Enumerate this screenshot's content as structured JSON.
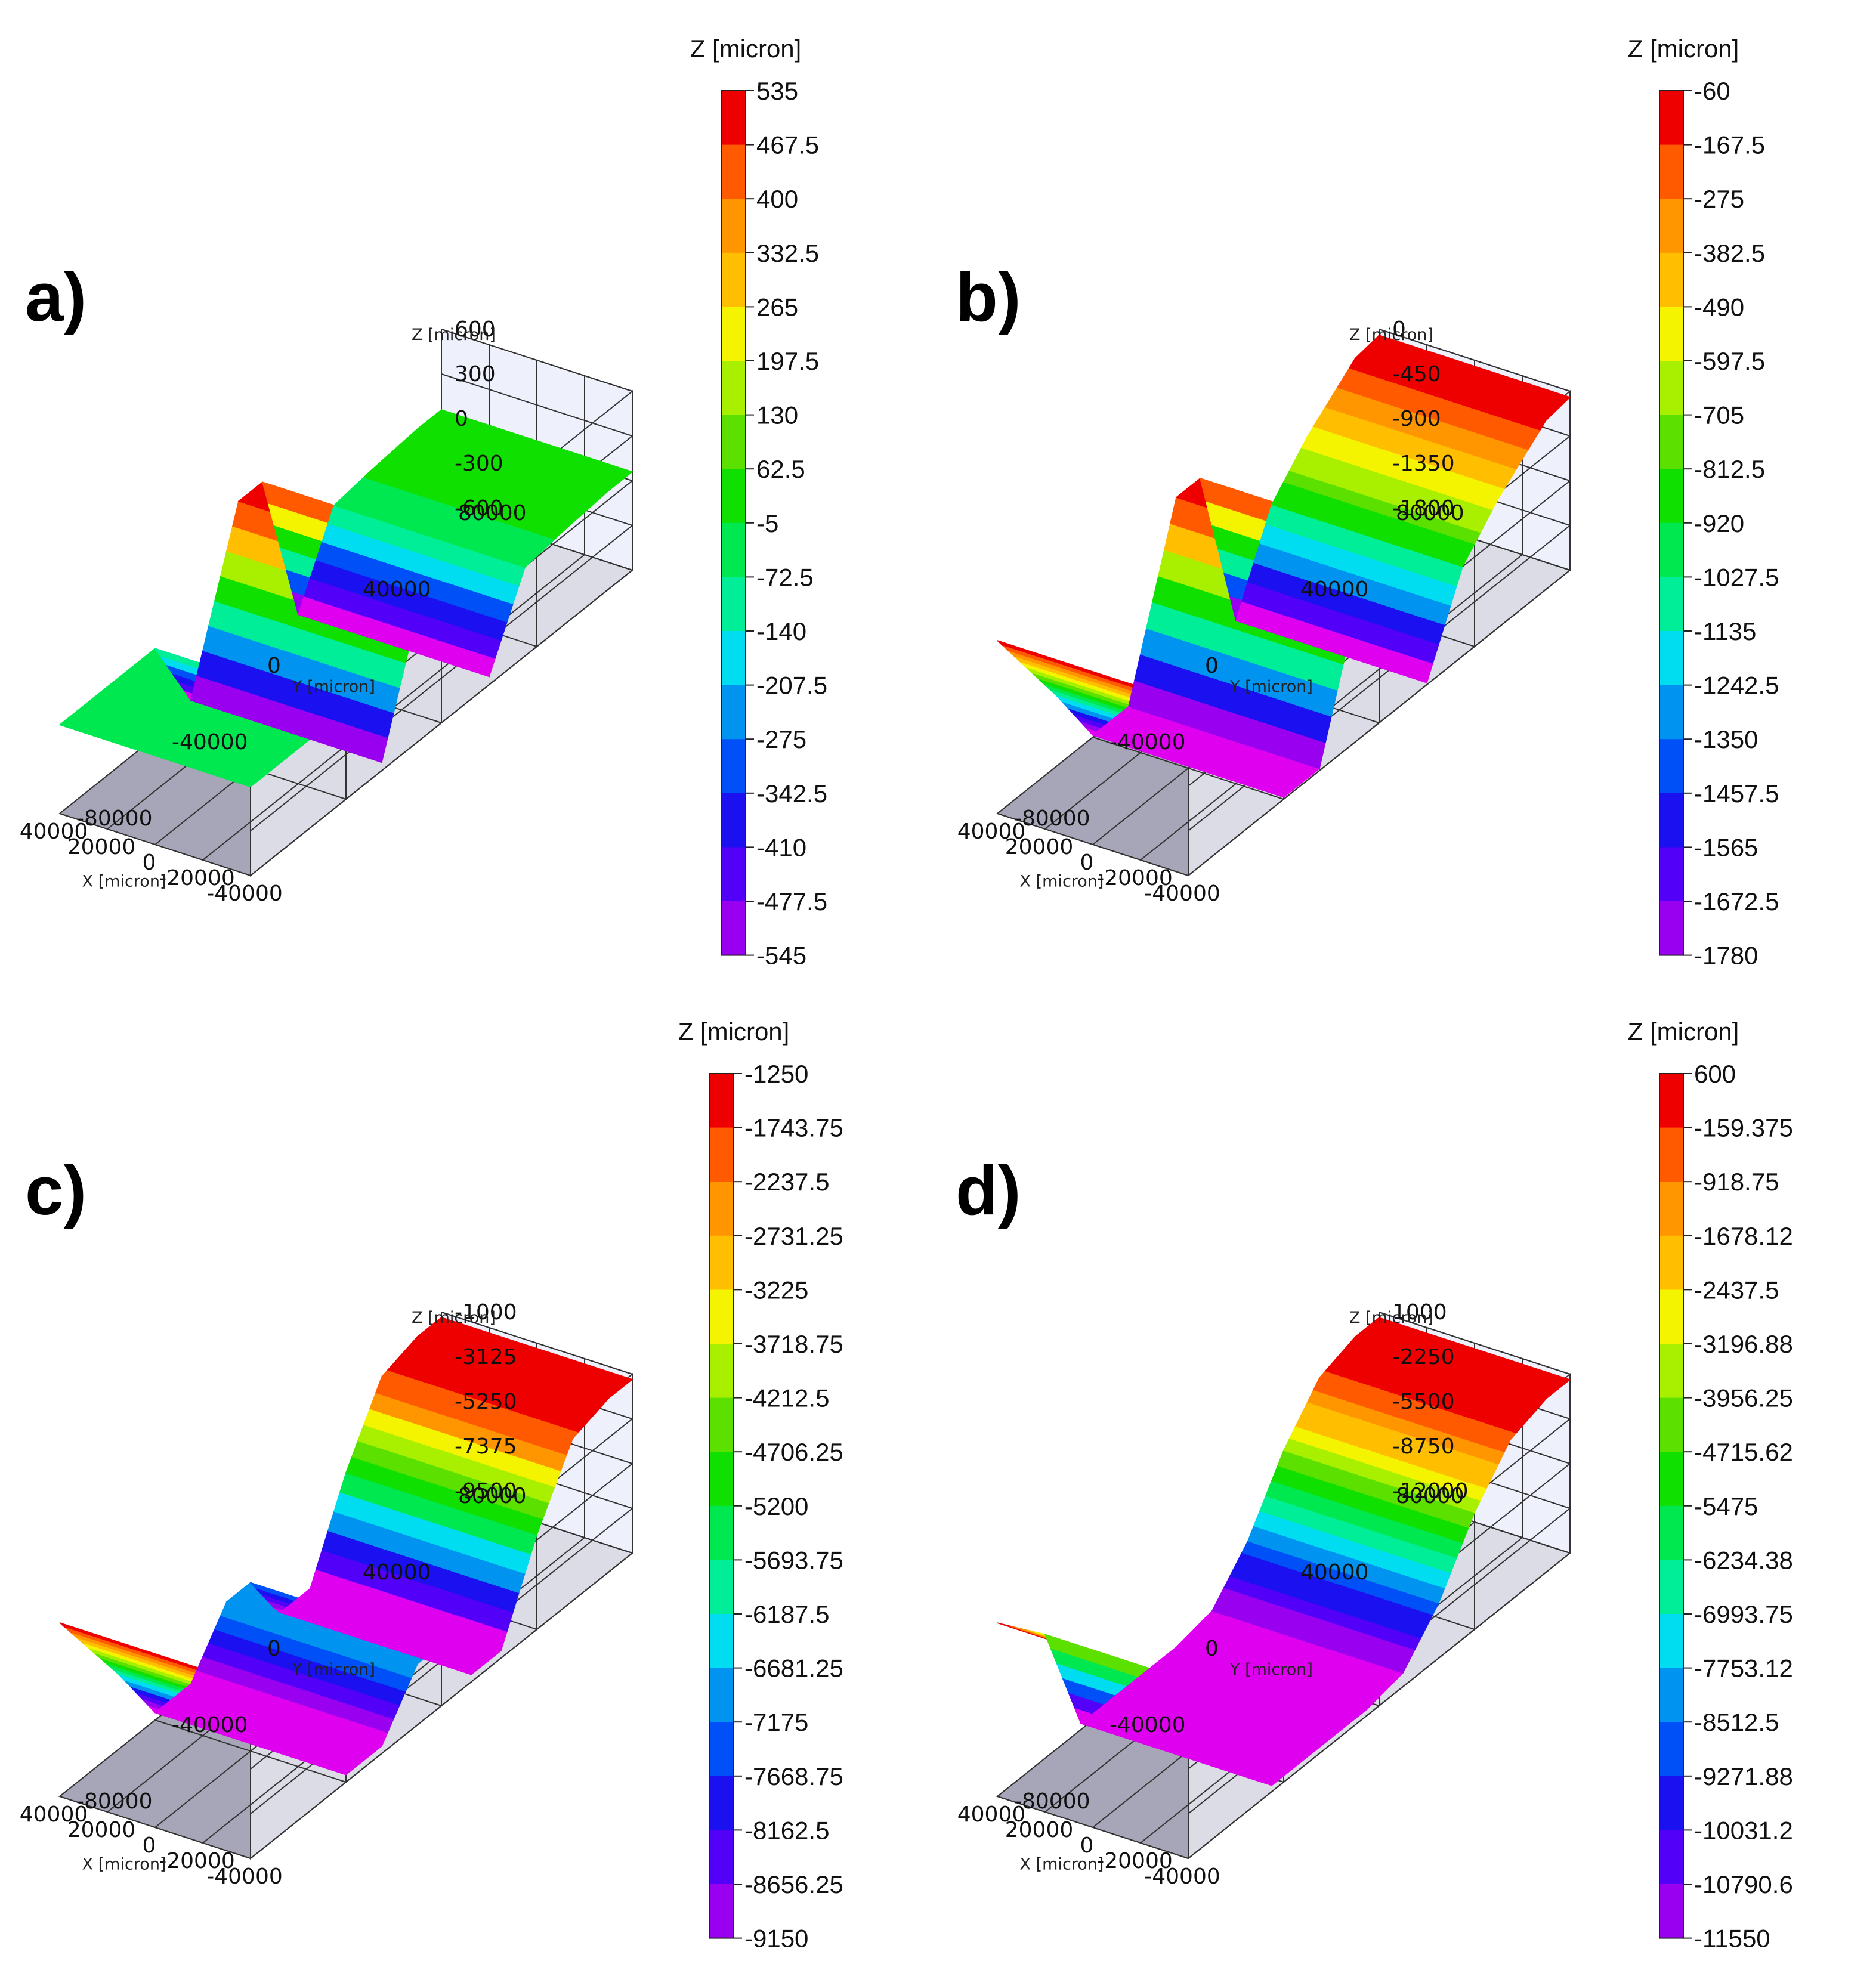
{
  "figure": {
    "colormap": [
      "#e000f0",
      "#9a00f0",
      "#5200f8",
      "#1a10f0",
      "#0050f8",
      "#0094f0",
      "#00ddf0",
      "#00ee98",
      "#00e850",
      "#10e000",
      "#5be000",
      "#a8f000",
      "#f4f400",
      "#ffbf00",
      "#ff9600",
      "#ff5a00",
      "#ef0000"
    ]
  },
  "chart_data": [
    {
      "id": "a",
      "type": "surface3d",
      "panel_label": "a)",
      "z_axis_label": "Z [micron]",
      "x_axis_label": "X [micron]",
      "y_axis_label": "Y [micron]",
      "x_ticks": [
        "-40000",
        "-20000",
        "0",
        "20000",
        "40000"
      ],
      "y_ticks": [
        "-80000",
        "-40000",
        "0",
        "40000",
        "80000"
      ],
      "z_ticks": [
        "600",
        "300",
        "0",
        "-300",
        "-600"
      ],
      "colorbar": {
        "title": "Z [micron]",
        "levels": [
          "535",
          "467.5",
          "400",
          "332.5",
          "265",
          "197.5",
          "130",
          "62.5",
          "-5",
          "-72.5",
          "-140",
          "-207.5",
          "-275",
          "-342.5",
          "-410",
          "-477.5",
          "-545"
        ]
      },
      "zlim": [
        -545,
        535
      ],
      "profile": {
        "y": [
          -80000,
          -60000,
          -40000,
          -25000,
          -5000,
          5000,
          20000,
          35000,
          50000,
          70000,
          80000
        ],
        "z": [
          -5,
          -5,
          -5,
          -545,
          535,
          535,
          -545,
          -5,
          30,
          60,
          60
        ]
      }
    },
    {
      "id": "b",
      "type": "surface3d",
      "panel_label": "b)",
      "z_axis_label": "Z [micron]",
      "x_axis_label": "X [micron]",
      "y_axis_label": "Y [micron]",
      "x_ticks": [
        "-40000",
        "-20000",
        "0",
        "20000",
        "40000"
      ],
      "y_ticks": [
        "-80000",
        "-40000",
        "0",
        "40000",
        "80000"
      ],
      "z_ticks": [
        "0",
        "-450",
        "-900",
        "-1350",
        "-1800"
      ],
      "colorbar": {
        "title": "Z [micron]",
        "levels": [
          "-60",
          "-167.5",
          "-275",
          "-382.5",
          "-490",
          "-597.5",
          "-705",
          "-812.5",
          "-920",
          "-1027.5",
          "-1135",
          "-1242.5",
          "-1350",
          "-1457.5",
          "-1565",
          "-1672.5",
          "-1780"
        ]
      },
      "zlim": [
        -1780,
        -60
      ],
      "profile": {
        "y": [
          -80000,
          -55000,
          -40000,
          -25000,
          -5000,
          5000,
          20000,
          35000,
          50000,
          70000,
          80000
        ],
        "z": [
          -60,
          -1100,
          -1780,
          -1780,
          -60,
          -60,
          -1780,
          -900,
          -500,
          -100,
          -60
        ]
      }
    },
    {
      "id": "c",
      "type": "surface3d",
      "panel_label": "c)",
      "z_axis_label": "Z [micron]",
      "x_axis_label": "X [micron]",
      "y_axis_label": "Y [micron]",
      "x_ticks": [
        "-40000",
        "-20000",
        "0",
        "20000",
        "40000"
      ],
      "y_ticks": [
        "-80000",
        "-40000",
        "0",
        "40000",
        "80000"
      ],
      "z_ticks": [
        "-1000",
        "-3125",
        "-5250",
        "-7375",
        "-9500"
      ],
      "colorbar": {
        "title": "Z [micron]",
        "levels": [
          "-1250",
          "-1743.75",
          "-2237.5",
          "-2731.25",
          "-3225",
          "-3718.75",
          "-4212.5",
          "-4706.25",
          "-5200",
          "-5693.75",
          "-6187.5",
          "-6681.25",
          "-7175",
          "-7668.75",
          "-8162.5",
          "-8656.25",
          "-9150"
        ]
      },
      "zlim": [
        -9150,
        -1250
      ],
      "profile": {
        "y": [
          -80000,
          -55000,
          -40000,
          -25000,
          -10000,
          0,
          12000,
          25000,
          40000,
          55000,
          70000,
          80000
        ],
        "z": [
          -1250,
          -6000,
          -9150,
          -9150,
          -6600,
          -6600,
          -9150,
          -9150,
          -5000,
          -1800,
          -1250,
          -1250
        ]
      }
    },
    {
      "id": "d",
      "type": "surface3d",
      "panel_label": "d)",
      "z_axis_label": "Z [micron]",
      "x_axis_label": "X [micron]",
      "y_axis_label": "Y [micron]",
      "x_ticks": [
        "-40000",
        "-20000",
        "0",
        "20000",
        "40000"
      ],
      "y_ticks": [
        "-80000",
        "-40000",
        "0",
        "40000",
        "80000"
      ],
      "z_ticks": [
        "1000",
        "-2250",
        "-5500",
        "-8750",
        "-12000"
      ],
      "colorbar": {
        "title": "Z [micron]",
        "levels": [
          "600",
          "-159.375",
          "-918.75",
          "-1678.12",
          "-2437.5",
          "-3196.88",
          "-3956.25",
          "-4715.62",
          "-5475",
          "-6234.38",
          "-6993.75",
          "-7753.12",
          "-8512.5",
          "-9271.88",
          "-10031.2",
          "-10790.6",
          "-11550"
        ]
      },
      "zlim": [
        -11550,
        600
      ],
      "profile": {
        "y": [
          -80000,
          -60000,
          -45000,
          -25000,
          -5000,
          10000,
          25000,
          40000,
          55000,
          70000,
          80000
        ],
        "z": [
          600,
          -3000,
          -11550,
          -11550,
          -11550,
          -11000,
          -8000,
          -3500,
          -300,
          600,
          600
        ]
      }
    }
  ]
}
